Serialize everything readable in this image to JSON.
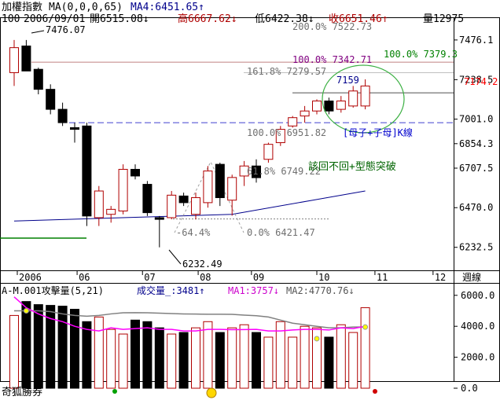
{
  "header": {
    "line1": {
      "title": "加權指數",
      "ma_params": "MA(0,0,0,65)",
      "ma4": "MA4:6451.65↑"
    },
    "line2": {
      "count": "100",
      "date": "2006/09/01",
      "open": "開6515.08↓",
      "high": "高6667.62↓",
      "low": "低6422.38↓",
      "close": "收6651.46↑",
      "volume": "量12975"
    }
  },
  "price_axis": {
    "ticks": [
      "7476.1",
      "7238.5",
      "7001.0",
      "6854.3",
      "6707.5",
      "6470.0",
      "6232.5"
    ],
    "current_value": "7174.2"
  },
  "time_axis": {
    "labels": [
      "2006",
      "06",
      "07",
      "08",
      "09",
      "10",
      "11",
      "12"
    ],
    "period": "週線"
  },
  "annotations": {
    "peak": "7476.07",
    "trough": "6232.49",
    "fib_upper": [
      "200.0% 7522.73",
      "100.0% 7379.3",
      "100.0% 7342.71",
      "161.8% 7279.57"
    ],
    "fib_lower": [
      "100.0% 6951.82",
      "61.8% 6749.22",
      "-64.4%",
      "0.0% 6421.47"
    ],
    "circle_value": "7159",
    "pattern_label": "[母子+子母]K線",
    "comment": "該回不回+型態突破"
  },
  "indicator": {
    "label": "A-M.001攻擊量(5,21)",
    "volume_label": "成交量_:3481↑",
    "ma1": "MA1:3757↓",
    "ma2": "MA2:4770.76↓",
    "ticks": [
      "6000.0",
      "4000.0",
      "2000.0",
      "0.0"
    ]
  },
  "footer": {
    "brand": "奇狐勝券"
  },
  "colors": {
    "up": "#b00000",
    "down": "#000000",
    "ma_line": "#00008b",
    "support": "#008000"
  },
  "chart_data": [
    {
      "type": "candlestick",
      "title": "加權指數",
      "period": "週線",
      "x_labels": [
        "2006",
        "06",
        "07",
        "08",
        "09",
        "10",
        "11",
        "12"
      ],
      "ylim": [
        6160,
        7560
      ],
      "candles": [
        {
          "o": 7280,
          "h": 7476,
          "l": 7200,
          "c": 7430
        },
        {
          "o": 7440,
          "h": 7476,
          "l": 7290,
          "c": 7290
        },
        {
          "o": 7300,
          "h": 7310,
          "l": 7150,
          "c": 7180
        },
        {
          "o": 7180,
          "h": 7210,
          "l": 7030,
          "c": 7060
        },
        {
          "o": 7060,
          "h": 7100,
          "l": 6960,
          "c": 6980
        },
        {
          "o": 6950,
          "h": 6980,
          "l": 6860,
          "c": 6940
        },
        {
          "o": 6960,
          "h": 6980,
          "l": 6360,
          "c": 6420
        },
        {
          "o": 6410,
          "h": 6600,
          "l": 6360,
          "c": 6570
        },
        {
          "o": 6430,
          "h": 6480,
          "l": 6380,
          "c": 6460
        },
        {
          "o": 6450,
          "h": 6730,
          "l": 6430,
          "c": 6700
        },
        {
          "o": 6700,
          "h": 6730,
          "l": 6640,
          "c": 6660
        },
        {
          "o": 6610,
          "h": 6630,
          "l": 6420,
          "c": 6440
        },
        {
          "o": 6410,
          "h": 6420,
          "l": 6232,
          "c": 6400
        },
        {
          "o": 6410,
          "h": 6570,
          "l": 6400,
          "c": 6545
        },
        {
          "o": 6540,
          "h": 6560,
          "l": 6480,
          "c": 6500
        },
        {
          "o": 6430,
          "h": 6560,
          "l": 6400,
          "c": 6530
        },
        {
          "o": 6500,
          "h": 6720,
          "l": 6470,
          "c": 6690
        },
        {
          "o": 6730,
          "h": 6740,
          "l": 6480,
          "c": 6530
        },
        {
          "o": 6515,
          "h": 6668,
          "l": 6422,
          "c": 6651
        },
        {
          "o": 6660,
          "h": 6750,
          "l": 6600,
          "c": 6720
        },
        {
          "o": 6720,
          "h": 6760,
          "l": 6620,
          "c": 6650
        },
        {
          "o": 6760,
          "h": 6860,
          "l": 6740,
          "c": 6850
        },
        {
          "o": 6860,
          "h": 6960,
          "l": 6840,
          "c": 6940
        },
        {
          "o": 6960,
          "h": 7020,
          "l": 6950,
          "c": 7010
        },
        {
          "o": 7020,
          "h": 7080,
          "l": 6980,
          "c": 7050
        },
        {
          "o": 7050,
          "h": 7120,
          "l": 7030,
          "c": 7110
        },
        {
          "o": 7110,
          "h": 7130,
          "l": 7030,
          "c": 7050
        },
        {
          "o": 7060,
          "h": 7140,
          "l": 7040,
          "c": 7110
        },
        {
          "o": 7080,
          "h": 7200,
          "l": 7070,
          "c": 7170
        },
        {
          "o": 7080,
          "h": 7240,
          "l": 7060,
          "c": 7200
        }
      ],
      "ma_line": {
        "name": "MA4",
        "x_index": [
          0,
          18,
          29
        ],
        "values": [
          6390,
          6430,
          6570
        ]
      },
      "horizontal_lines": [
        7343,
        7280,
        7159,
        6980,
        6402
      ],
      "volume": [
        4700,
        5600,
        5400,
        5350,
        5300,
        5100,
        4300,
        4600,
        3800,
        3500,
        4400,
        4300,
        3900,
        3500,
        3600,
        3900,
        4300,
        3600,
        3900,
        4100,
        3600,
        3300,
        4300,
        3300,
        4000,
        3900,
        3300,
        4100,
        3600,
        5200
      ],
      "volume_ma1": [
        5900,
        5200,
        4800,
        4500,
        4300,
        4000,
        3800,
        3700,
        3900,
        3800,
        3850,
        3900,
        3800,
        3800,
        3700,
        3700,
        3800,
        3800,
        3780,
        3790,
        3800,
        3700,
        3700,
        3760,
        3800,
        3800,
        3760,
        3900,
        3850,
        4000
      ],
      "volume_ma2": [
        5000,
        5000,
        5000,
        4950,
        4800,
        4700,
        4650,
        4700,
        4800,
        4870,
        4880,
        4870,
        4850,
        4820,
        4800,
        4790,
        4780,
        4775,
        4771,
        4720,
        4680,
        4600,
        4400,
        4200,
        4100,
        4000,
        3900,
        3900,
        3950,
        3950
      ],
      "volume_ticks": [
        6000,
        4000,
        2000,
        0
      ]
    }
  ]
}
